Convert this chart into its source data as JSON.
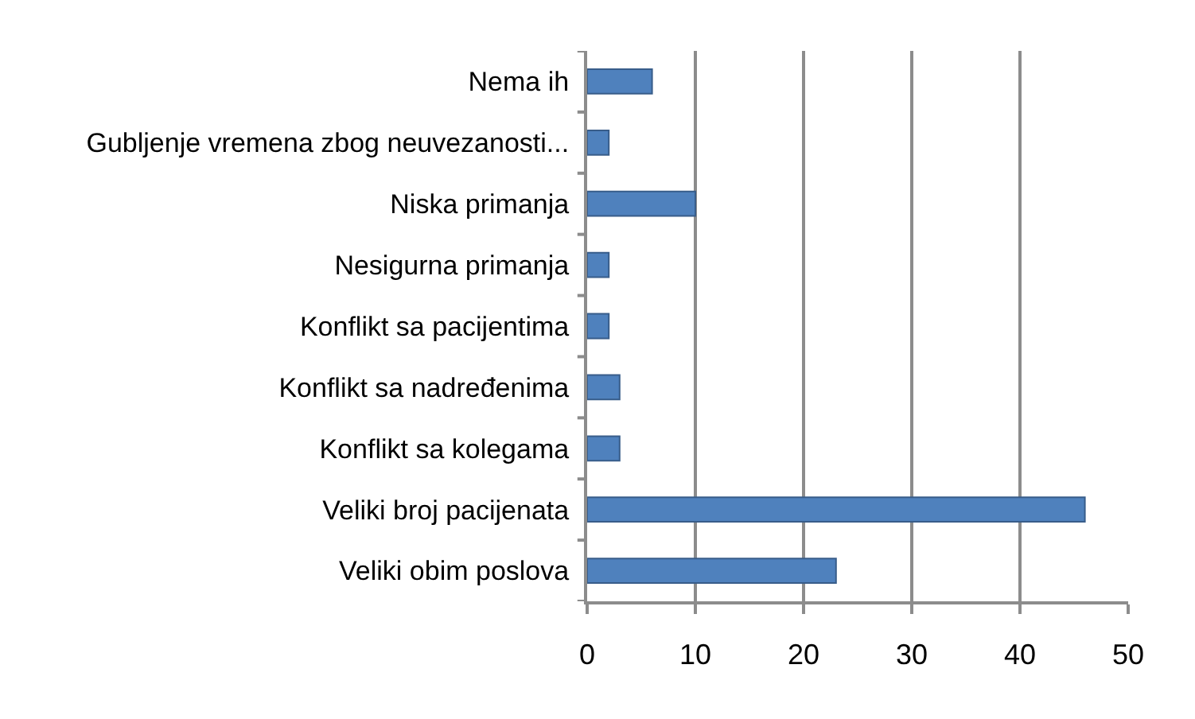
{
  "chart_data": {
    "type": "bar",
    "orientation": "horizontal",
    "categories": [
      "Nema ih",
      "Gubljenje vremena zbog neuvezanosti...",
      "Niska primanja",
      "Nesigurna primanja",
      "Konflikt sa pacijentima",
      "Konflikt sa nadređenima",
      "Konflikt sa kolegama",
      "Veliki broj pacijenata",
      "Veliki obim poslova"
    ],
    "values": [
      6,
      2,
      10,
      2,
      2,
      3,
      3,
      46,
      23
    ],
    "color": "#4f81bd",
    "xlim": [
      0,
      50
    ],
    "xticks": [
      0,
      10,
      20,
      30,
      40,
      50
    ],
    "grid": "x"
  }
}
